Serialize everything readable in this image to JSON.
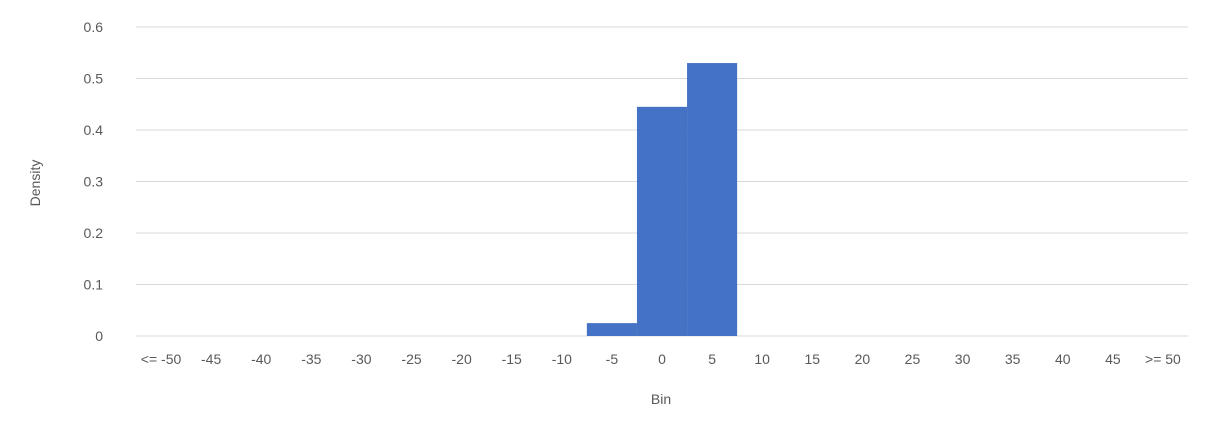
{
  "chart_data": {
    "type": "bar",
    "title": "",
    "xlabel": "Bin",
    "ylabel": "Density",
    "ylim": [
      0,
      0.6
    ],
    "yticks": [
      "0",
      "0.1",
      "0.2",
      "0.3",
      "0.4",
      "0.5",
      "0.6"
    ],
    "grid": true,
    "legend": "none",
    "bar_color": "#4472c4",
    "categories": [
      "<= -50",
      "-45",
      "-40",
      "-35",
      "-30",
      "-25",
      "-20",
      "-15",
      "-10",
      "-5",
      "0",
      "5",
      "10",
      "15",
      "20",
      "25",
      "30",
      "35",
      "40",
      "45",
      ">= 50"
    ],
    "values": [
      0,
      0,
      0,
      0,
      0,
      0,
      0,
      0,
      0,
      0.025,
      0.445,
      0.53,
      0,
      0,
      0,
      0,
      0,
      0,
      0,
      0,
      0
    ]
  }
}
